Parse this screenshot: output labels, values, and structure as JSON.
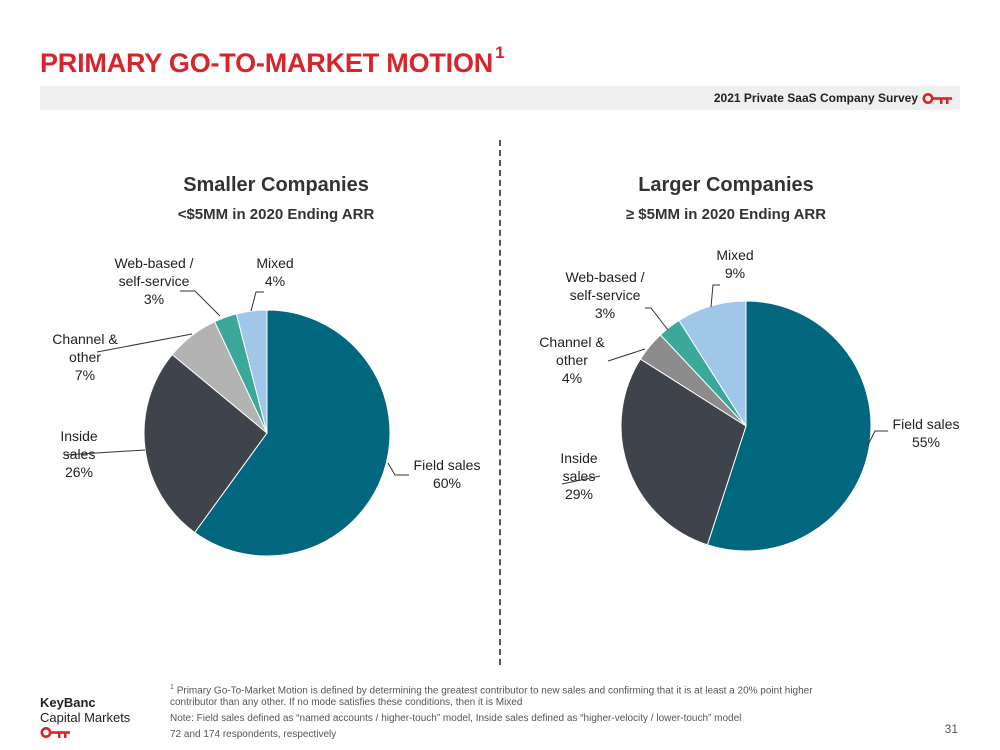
{
  "slide": {
    "title": "PRIMARY GO-TO-MARKET MOTION",
    "title_footnote_marker": "1",
    "survey_label": "2021 Private SaaS Company Survey",
    "brand_color": "#d6262b",
    "page_number": "31"
  },
  "footnotes": {
    "marker": "1",
    "definition": "Primary Go-To-Market Motion is defined by determining the greatest contributor to new sales and confirming that it is at least a 20% point higher contributor than any other.  If no mode satisfies these conditions, then it is Mixed",
    "note": "Note: Field sales defined as “named accounts / higher-touch” model, Inside sales defined as “higher-velocity / lower-touch” model",
    "respondents": "72 and 174 respondents, respectively"
  },
  "logo": {
    "line1": "KeyBanc",
    "line2": "Capital Markets"
  },
  "chart_data": [
    {
      "type": "pie",
      "title": "Smaller Companies",
      "subtitle": "<$5MM in 2020 Ending ARR",
      "categories": [
        "Field sales",
        "Inside sales",
        "Channel & other",
        "Web-based / self-service",
        "Mixed"
      ],
      "labels": [
        [
          "Field sales",
          "60%"
        ],
        [
          "Inside",
          "sales",
          "26%"
        ],
        [
          "Channel &",
          "other",
          "7%"
        ],
        [
          "Web-based /",
          "self-service",
          "3%"
        ],
        [
          "Mixed",
          "4%"
        ]
      ],
      "values": [
        60,
        26,
        7,
        3,
        4
      ],
      "colors": [
        "#00677f",
        "#3f434b",
        "#b3b3b3",
        "#3aa99b",
        "#a0c6e8"
      ]
    },
    {
      "type": "pie",
      "title": "Larger Companies",
      "subtitle": "≥ $5MM in 2020 Ending ARR",
      "categories": [
        "Field sales",
        "Inside sales",
        "Channel & other",
        "Web-based / self-service",
        "Mixed"
      ],
      "labels": [
        [
          "Field sales",
          "55%"
        ],
        [
          "Inside",
          "sales",
          "29%"
        ],
        [
          "Channel &",
          "other",
          "4%"
        ],
        [
          "Web-based /",
          "self-service",
          "3%"
        ],
        [
          "Mixed",
          "9%"
        ]
      ],
      "values": [
        55,
        29,
        4,
        3,
        9
      ],
      "colors": [
        "#00677f",
        "#3f434b",
        "#8c8c8c",
        "#3aa99b",
        "#a0c6e8"
      ]
    }
  ]
}
